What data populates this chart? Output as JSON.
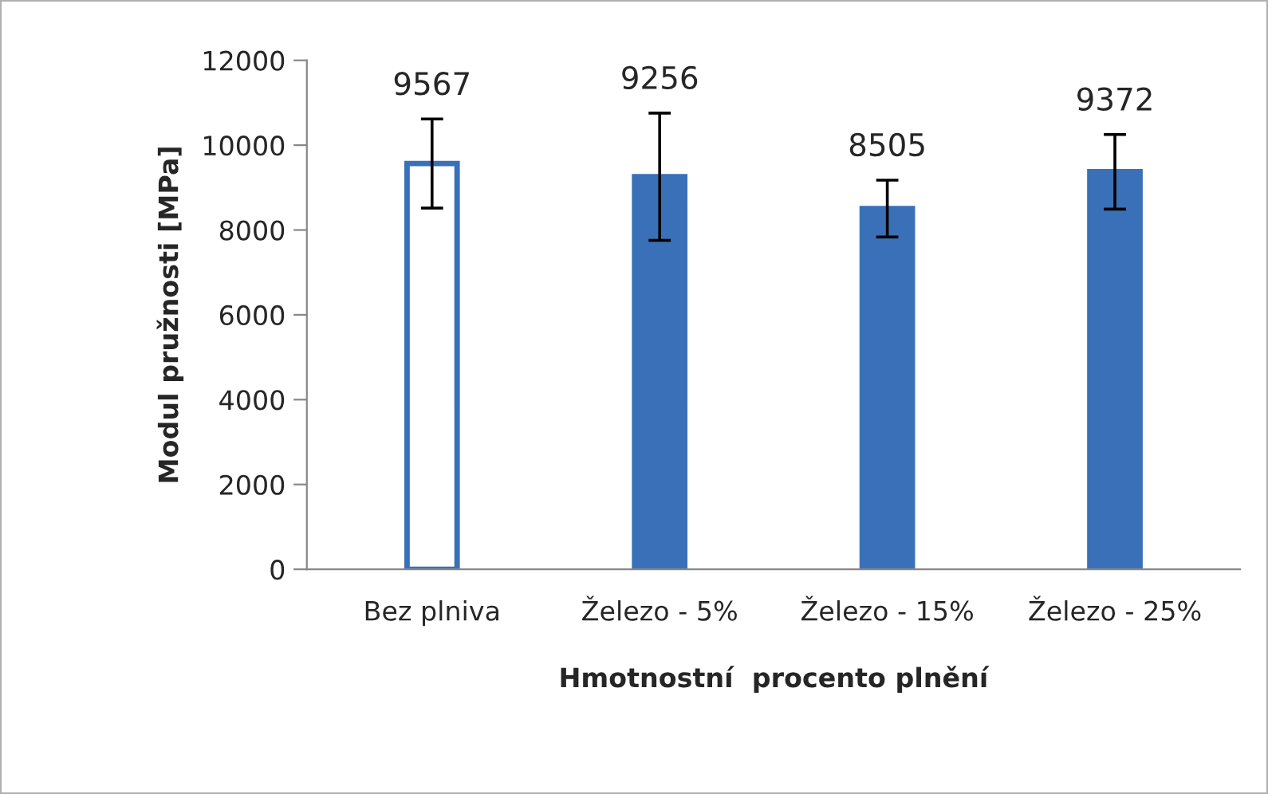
{
  "chart_data": {
    "type": "bar",
    "categories": [
      "Bez plniva",
      "Železo - 5%",
      "Železo - 15%",
      "Železo - 25%"
    ],
    "values": [
      9567,
      9256,
      8505,
      9372
    ],
    "errors": [
      1050,
      1500,
      670,
      880
    ],
    "colors": [
      "#ffffff",
      "#3a70b8",
      "#3a70b8",
      "#3a70b8"
    ],
    "data_labels": true,
    "xlabel": "Hmotnostní  procento plnění",
    "ylabel": "Modul pružnosti [MPa]",
    "ylim": [
      0,
      12000
    ],
    "yticks": [
      0,
      2000,
      4000,
      6000,
      8000,
      10000,
      12000
    ],
    "grid": false,
    "legend": false
  }
}
